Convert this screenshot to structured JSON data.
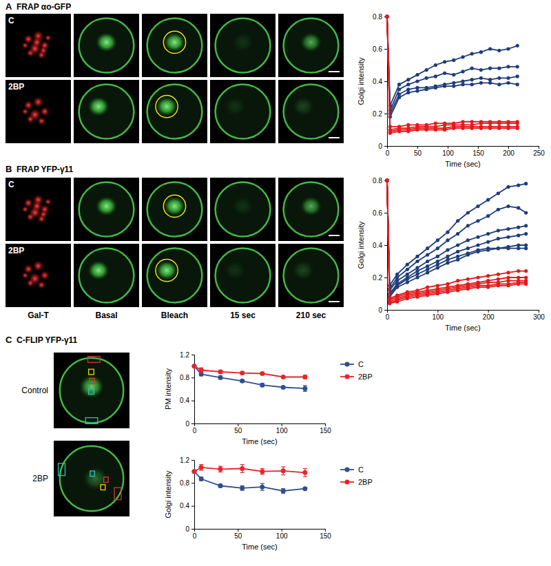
{
  "figure": {
    "panels": [
      {
        "letter": "A",
        "title": "FRAP αo-GFP",
        "row_labels": [
          "C",
          "2BP"
        ]
      },
      {
        "letter": "B",
        "title": "FRAP YFP-γ11",
        "row_labels": [
          "C",
          "2BP"
        ],
        "column_labels": [
          "Gal-T",
          "Basal",
          "Bleach",
          "15 sec",
          "210 sec"
        ]
      },
      {
        "letter": "C",
        "title": "C-FLIP YFP-γ11",
        "row_labels": [
          "Control",
          "2BP"
        ]
      }
    ]
  },
  "chart_data": [
    {
      "type": "line",
      "x_label": "Time (sec)",
      "y_label": "Golgi intensity",
      "x": [
        0,
        5,
        20,
        35,
        50,
        65,
        80,
        95,
        110,
        125,
        140,
        155,
        170,
        185,
        200,
        215
      ],
      "xlim": [
        0,
        250
      ],
      "xticks": [
        0,
        50,
        100,
        150,
        200,
        250
      ],
      "ylim": [
        0,
        0.8
      ],
      "yticks": [
        0,
        0.2,
        0.4,
        0.6,
        0.8
      ],
      "series": [
        {
          "color": "#1f3d7a",
          "marker": "circle",
          "line_style": "solid",
          "values": [
            0.8,
            0.25,
            0.38,
            0.41,
            0.44,
            0.47,
            0.5,
            0.52,
            0.53,
            0.55,
            0.57,
            0.58,
            0.6,
            0.59,
            0.6,
            0.62
          ]
        },
        {
          "color": "#1f3d7a",
          "marker": "circle",
          "line_style": "solid",
          "values": [
            0.8,
            0.22,
            0.35,
            0.38,
            0.4,
            0.42,
            0.43,
            0.45,
            0.44,
            0.46,
            0.48,
            0.47,
            0.48,
            0.48,
            0.49,
            0.49
          ]
        },
        {
          "color": "#1f3d7a",
          "marker": "circle",
          "line_style": "solid",
          "values": [
            0.8,
            0.2,
            0.32,
            0.35,
            0.36,
            0.36,
            0.37,
            0.38,
            0.39,
            0.4,
            0.41,
            0.42,
            0.41,
            0.42,
            0.42,
            0.43
          ]
        },
        {
          "color": "#1f3d7a",
          "marker": "circle",
          "line_style": "solid",
          "values": [
            0.8,
            0.18,
            0.3,
            0.33,
            0.34,
            0.35,
            0.36,
            0.37,
            0.37,
            0.38,
            0.38,
            0.39,
            0.39,
            0.38,
            0.39,
            0.38
          ]
        },
        {
          "color": "#e31a1c",
          "marker": "circle",
          "line_style": "solid",
          "values": [
            0.8,
            0.12,
            0.12,
            0.13,
            0.13,
            0.13,
            0.14,
            0.14,
            0.14,
            0.15,
            0.15,
            0.15,
            0.15,
            0.15,
            0.15,
            0.15
          ]
        },
        {
          "color": "#e31a1c",
          "marker": "circle",
          "line_style": "solid",
          "values": [
            0.8,
            0.1,
            0.11,
            0.11,
            0.12,
            0.12,
            0.12,
            0.13,
            0.13,
            0.13,
            0.13,
            0.14,
            0.14,
            0.14,
            0.14,
            0.14
          ]
        },
        {
          "color": "#e31a1c",
          "marker": "circle",
          "line_style": "solid",
          "values": [
            0.8,
            0.09,
            0.1,
            0.1,
            0.11,
            0.11,
            0.11,
            0.11,
            0.12,
            0.12,
            0.12,
            0.12,
            0.12,
            0.12,
            0.12,
            0.12
          ]
        },
        {
          "color": "#e31a1c",
          "marker": "circle",
          "line_style": "solid",
          "values": [
            0.8,
            0.08,
            0.09,
            0.09,
            0.1,
            0.1,
            0.1,
            0.1,
            0.11,
            0.11,
            0.11,
            0.11,
            0.11,
            0.11,
            0.11,
            0.11
          ]
        }
      ]
    },
    {
      "type": "line",
      "x_label": "Time (sec)",
      "y_label": "Golgi intensity",
      "x": [
        0,
        5,
        20,
        40,
        60,
        80,
        100,
        120,
        140,
        160,
        180,
        200,
        220,
        240,
        260,
        275
      ],
      "xlim": [
        0,
        300
      ],
      "xticks": [
        0,
        100,
        200,
        300
      ],
      "ylim": [
        0,
        0.8
      ],
      "yticks": [
        0,
        0.2,
        0.4,
        0.6,
        0.8
      ],
      "series": [
        {
          "color": "#1f3d7a",
          "marker": "circle",
          "line_style": "solid",
          "values": [
            0.8,
            0.15,
            0.22,
            0.28,
            0.33,
            0.38,
            0.43,
            0.48,
            0.55,
            0.6,
            0.64,
            0.68,
            0.72,
            0.76,
            0.77,
            0.78
          ]
        },
        {
          "color": "#1f3d7a",
          "marker": "circle",
          "line_style": "solid",
          "values": [
            0.8,
            0.13,
            0.2,
            0.25,
            0.3,
            0.34,
            0.38,
            0.43,
            0.47,
            0.52,
            0.55,
            0.58,
            0.62,
            0.64,
            0.63,
            0.6
          ]
        },
        {
          "color": "#1f3d7a",
          "marker": "circle",
          "line_style": "solid",
          "values": [
            0.8,
            0.12,
            0.18,
            0.22,
            0.26,
            0.3,
            0.33,
            0.37,
            0.4,
            0.43,
            0.45,
            0.47,
            0.49,
            0.5,
            0.51,
            0.52
          ]
        },
        {
          "color": "#1f3d7a",
          "marker": "circle",
          "line_style": "solid",
          "values": [
            0.8,
            0.1,
            0.16,
            0.2,
            0.24,
            0.27,
            0.3,
            0.33,
            0.36,
            0.38,
            0.4,
            0.42,
            0.44,
            0.45,
            0.46,
            0.47
          ]
        },
        {
          "color": "#1f3d7a",
          "marker": "circle",
          "line_style": "solid",
          "values": [
            0.8,
            0.09,
            0.15,
            0.19,
            0.22,
            0.25,
            0.28,
            0.31,
            0.33,
            0.35,
            0.37,
            0.38,
            0.38,
            0.39,
            0.4,
            0.4
          ]
        },
        {
          "color": "#1f3d7a",
          "marker": "circle",
          "line_style": "solid",
          "values": [
            0.8,
            0.08,
            0.14,
            0.17,
            0.2,
            0.23,
            0.26,
            0.29,
            0.31,
            0.34,
            0.36,
            0.37,
            0.38,
            0.38,
            0.38,
            0.38
          ]
        },
        {
          "color": "#e31a1c",
          "marker": "circle",
          "line_style": "solid",
          "values": [
            0.8,
            0.07,
            0.09,
            0.11,
            0.12,
            0.14,
            0.15,
            0.16,
            0.18,
            0.19,
            0.2,
            0.21,
            0.22,
            0.23,
            0.24,
            0.24
          ]
        },
        {
          "color": "#e31a1c",
          "marker": "circle",
          "line_style": "solid",
          "values": [
            0.8,
            0.06,
            0.08,
            0.1,
            0.11,
            0.12,
            0.13,
            0.14,
            0.15,
            0.16,
            0.17,
            0.18,
            0.19,
            0.2,
            0.2,
            0.2
          ]
        },
        {
          "color": "#e31a1c",
          "marker": "circle",
          "line_style": "solid",
          "values": [
            0.8,
            0.05,
            0.07,
            0.09,
            0.1,
            0.11,
            0.12,
            0.13,
            0.14,
            0.15,
            0.16,
            0.17,
            0.17,
            0.18,
            0.18,
            0.18
          ]
        },
        {
          "color": "#e31a1c",
          "marker": "circle",
          "line_style": "solid",
          "values": [
            0.8,
            0.04,
            0.06,
            0.08,
            0.09,
            0.1,
            0.11,
            0.12,
            0.13,
            0.14,
            0.15,
            0.15,
            0.16,
            0.16,
            0.17,
            0.17
          ]
        },
        {
          "color": "#e31a1c",
          "marker": "circle",
          "line_style": "solid",
          "values": [
            0.8,
            0.04,
            0.05,
            0.07,
            0.08,
            0.09,
            0.1,
            0.11,
            0.12,
            0.13,
            0.14,
            0.14,
            0.15,
            0.15,
            0.16,
            0.16
          ]
        }
      ]
    },
    {
      "type": "line",
      "x_label": "Time (sec)",
      "y_label": "PM intensity",
      "legend": "right",
      "x": [
        0,
        8,
        30,
        55,
        78,
        102,
        127
      ],
      "xlim": [
        0,
        150
      ],
      "xticks": [
        0,
        50,
        100,
        150
      ],
      "ylim": [
        0,
        1.2
      ],
      "yticks": [
        0,
        0.4,
        0.8,
        1.2
      ],
      "series": [
        {
          "name": "C",
          "color": "#2f4f8f",
          "marker": "circle",
          "line_style": "solid",
          "values": [
            1.0,
            0.86,
            0.8,
            0.74,
            0.67,
            0.63,
            0.61
          ],
          "errors": [
            0,
            0.03,
            0.03,
            0.02,
            0.03,
            0.02,
            0.05
          ]
        },
        {
          "name": "2BP",
          "color": "#e8252b",
          "marker": "circle",
          "line_style": "solid",
          "values": [
            1.0,
            0.93,
            0.9,
            0.88,
            0.87,
            0.81,
            0.81
          ],
          "errors": [
            0,
            0.04,
            0.03,
            0.02,
            0.02,
            0.02,
            0.03
          ]
        }
      ]
    },
    {
      "type": "line",
      "x_label": "Time (sec)",
      "y_label": "Golgi intensity",
      "legend": "right",
      "x": [
        0,
        8,
        30,
        55,
        78,
        102,
        127
      ],
      "xlim": [
        0,
        150
      ],
      "xticks": [
        0,
        50,
        100,
        150
      ],
      "ylim": [
        0,
        1.2
      ],
      "yticks": [
        0,
        0.4,
        0.8,
        1.2
      ],
      "series": [
        {
          "name": "C",
          "color": "#2f4f8f",
          "marker": "circle",
          "line_style": "solid",
          "values": [
            1.0,
            0.87,
            0.75,
            0.71,
            0.73,
            0.66,
            0.7
          ],
          "errors": [
            0,
            0.03,
            0.03,
            0.04,
            0.06,
            0.04,
            0.02
          ]
        },
        {
          "name": "2BP",
          "color": "#e8252b",
          "marker": "circle",
          "line_style": "solid",
          "values": [
            1.0,
            1.07,
            1.04,
            1.05,
            1.0,
            1.01,
            0.98
          ],
          "errors": [
            0,
            0.05,
            0.05,
            0.07,
            0.05,
            0.07,
            0.07
          ]
        }
      ]
    }
  ]
}
